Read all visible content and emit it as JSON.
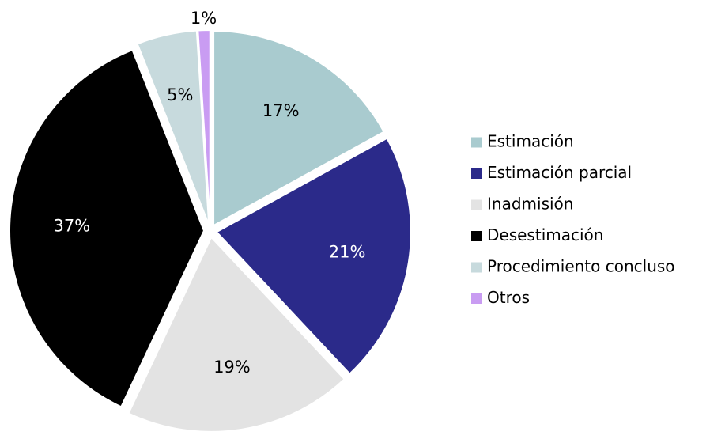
{
  "chart_data": {
    "type": "pie",
    "title": "",
    "series": [
      {
        "values": [
          17,
          21,
          19,
          37,
          5,
          1
        ]
      }
    ],
    "categories": [
      "Estimación",
      "Estimación parcial",
      "Inadmisión",
      "Desestimación",
      "Procedimiento concluso",
      "Otros"
    ],
    "labels": [
      "17%",
      "21%",
      "19%",
      "37%",
      "5%",
      "1%"
    ],
    "colors": [
      "#a9cbcf",
      "#2b2a8a",
      "#e3e3e3",
      "#000000",
      "#c7dadd",
      "#c99cf2"
    ],
    "label_colors": [
      "#000000",
      "#ffffff",
      "#000000",
      "#ffffff",
      "#000000",
      "#000000"
    ],
    "legend_placement": "right",
    "start": "top",
    "direction": "clockwise",
    "exploded": true
  }
}
